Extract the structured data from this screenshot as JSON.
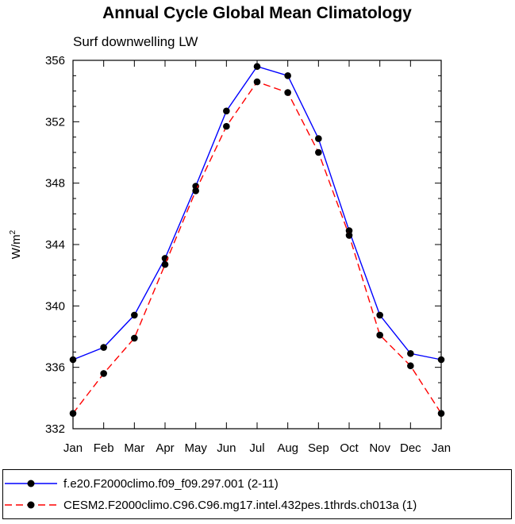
{
  "chart_data": {
    "type": "line",
    "title": "Annual Cycle Global Mean Climatology",
    "subtitle": "Surf downwelling LW",
    "ylabel_base": "W/m",
    "ylabel_sup": "2",
    "xlabel": "",
    "categories": [
      "Jan",
      "Feb",
      "Mar",
      "Apr",
      "May",
      "Jun",
      "Jul",
      "Aug",
      "Sep",
      "Oct",
      "Nov",
      "Dec",
      "Jan"
    ],
    "ylim": [
      332,
      356
    ],
    "yticks": [
      332,
      336,
      340,
      344,
      348,
      352,
      356
    ],
    "series": [
      {
        "name": "f.e20.F2000climo.f09_f09.297.001 (2-11)",
        "color": "#0000ff",
        "dash": "solid",
        "values": [
          336.5,
          337.3,
          339.4,
          343.1,
          347.8,
          352.7,
          355.6,
          355.0,
          350.9,
          344.9,
          339.4,
          336.9,
          336.5
        ]
      },
      {
        "name": "CESM2.F2000climo.C96.C96.mg17.intel.432pes.1thrds.ch013a (1)",
        "color": "#ff0000",
        "dash": "dashed",
        "values": [
          333.0,
          335.6,
          337.9,
          342.7,
          347.5,
          351.7,
          354.6,
          353.9,
          350.0,
          344.6,
          338.1,
          336.1,
          333.0
        ]
      }
    ]
  }
}
